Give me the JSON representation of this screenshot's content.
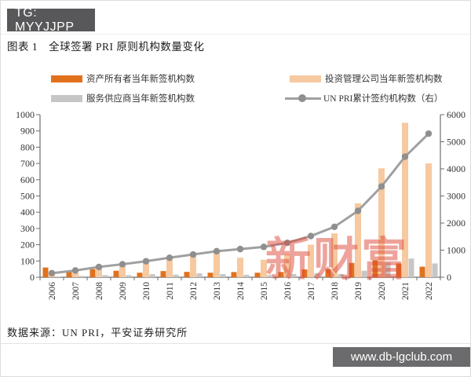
{
  "header": {
    "tg_label": "TG: MYYJJPP"
  },
  "title": "图表 1　全球签署 PRI 原则机构数量变化",
  "legend": [
    {
      "label": "资产所有者当年新签机构数",
      "type": "bar",
      "color": "#e2711d"
    },
    {
      "label": "投资管理公司当年新签机构数",
      "type": "bar",
      "color": "#f6c9a0"
    },
    {
      "label": "服务供应商当年新签机构数",
      "type": "bar",
      "color": "#c6c6c6"
    },
    {
      "label": "UN PRI累计签约机构数（右）",
      "type": "line",
      "color": "#a0a0a0",
      "marker_color": "#8f8f8f"
    }
  ],
  "chart_data": {
    "type": "bar",
    "subtype": "grouped bars + cumulative line on secondary axis",
    "categories": [
      "2006",
      "2007",
      "2008",
      "2009",
      "2010",
      "2011",
      "2012",
      "2013",
      "2014",
      "2015",
      "2016",
      "2017",
      "2018",
      "2019",
      "2020",
      "2021",
      "2022"
    ],
    "series": [
      {
        "name": "资产所有者当年新签机构数",
        "type": "bar",
        "axis": "left",
        "color": "#e2711d",
        "values": [
          60,
          38,
          50,
          40,
          28,
          38,
          33,
          28,
          32,
          28,
          32,
          48,
          50,
          88,
          105,
          85,
          65
        ]
      },
      {
        "name": "投资管理公司当年新签机构数",
        "type": "bar",
        "axis": "left",
        "color": "#f6c9a0",
        "values": [
          15,
          28,
          70,
          80,
          95,
          113,
          130,
          150,
          120,
          108,
          140,
          200,
          270,
          455,
          670,
          950,
          700
        ]
      },
      {
        "name": "服务供应商当年新签机构数",
        "type": "bar",
        "axis": "left",
        "color": "#c6c6c6",
        "values": [
          5,
          8,
          13,
          13,
          19,
          16,
          24,
          19,
          15,
          13,
          20,
          25,
          20,
          40,
          90,
          115,
          85
        ]
      },
      {
        "name": "UN PRI累计签约机构数（右）",
        "type": "line",
        "axis": "right",
        "color": "#a0a0a0",
        "marker_color": "#8f8f8f",
        "values": [
          150,
          250,
          380,
          480,
          590,
          720,
          840,
          960,
          1040,
          1120,
          1270,
          1520,
          1860,
          2450,
          3350,
          4450,
          5300
        ]
      }
    ],
    "title": "全球签署 PRI 原则机构数量变化",
    "xlabel": "",
    "ylabel": "",
    "left_axis": {
      "min": 0,
      "max": 1000,
      "step": 100,
      "ticks": [
        "0",
        "100",
        "200",
        "300",
        "400",
        "500",
        "600",
        "700",
        "800",
        "900",
        "1000"
      ]
    },
    "right_axis": {
      "min": 0,
      "max": 6000,
      "step": 1000,
      "ticks": [
        "0",
        "1000",
        "2000",
        "3000",
        "4000",
        "5000",
        "6000"
      ]
    },
    "grid": false,
    "legend_position": "top"
  },
  "watermark": "新财富",
  "source": "数据来源：UN PRI，平安证券研究所",
  "footer": {
    "website": "www.db-lgclub.com"
  },
  "colors": {
    "tg_box_bg": "#58585a",
    "site_box_bg": "#6b6b6d",
    "axis": "#6e6e6e",
    "axis_label": "#333333",
    "watermark_red": "rgba(219,72,56,0.5)"
  }
}
